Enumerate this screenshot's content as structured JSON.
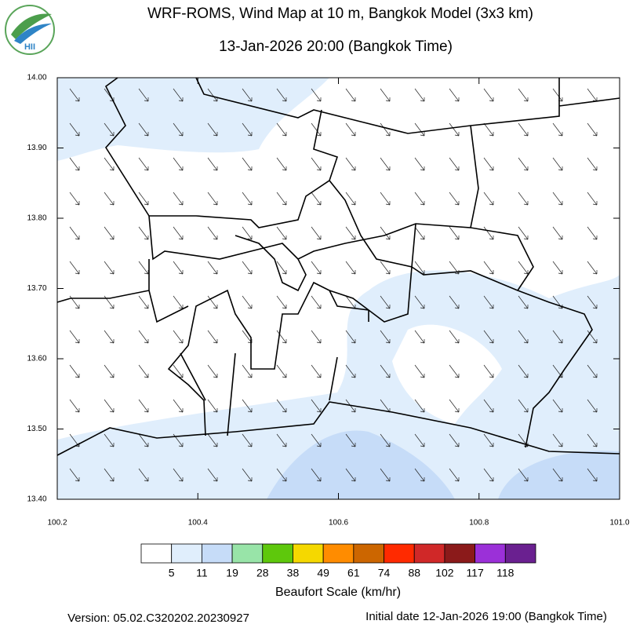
{
  "header": {
    "title": "WRF-ROMS, Wind Map at 10 m, Bangkok Model (3x3 km)",
    "subtitle": "13-Jan-2026 20:00 (Bangkok Time)"
  },
  "logo": {
    "text": "HII"
  },
  "map": {
    "xticks": [
      "100.2",
      "100.4",
      "100.6",
      "100.8",
      "101.0"
    ],
    "yticks": [
      "14.00",
      "13.90",
      "13.80",
      "13.70",
      "13.60",
      "13.50",
      "13.40"
    ]
  },
  "legend": {
    "title": "Beaufort Scale (km/hr)",
    "colors": [
      "#ffffff",
      "#e0eefc",
      "#c6dcf8",
      "#98e4a8",
      "#5ec80c",
      "#f5d800",
      "#ff8c00",
      "#cc6600",
      "#ff2a00",
      "#d02828",
      "#8b1a1a",
      "#9b30d8",
      "#6a2090"
    ],
    "labels": [
      "5",
      "11",
      "19",
      "28",
      "38",
      "49",
      "61",
      "74",
      "88",
      "102",
      "117",
      "118"
    ]
  },
  "footer": {
    "version": "Version: 05.02.C320202.20230927",
    "initial": "Initial date 12-Jan-2026 19:00 (Bangkok Time)"
  }
}
